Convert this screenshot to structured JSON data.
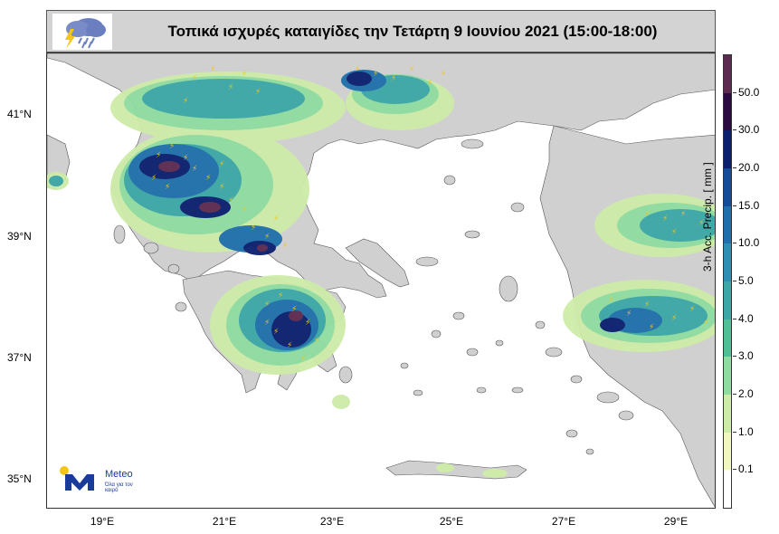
{
  "title": "Τοπικά ισχυρές καταιγίδες την Τετάρτη 9 Ιουνίου 2021 (15:00-18:00)",
  "icon": "thunderstorm-rain-icon",
  "map": {
    "land_color": "#d0d0d0",
    "sea_color": "#ffffff",
    "lightning_color": "#f5c518",
    "y_axis": [
      "41°N",
      "39°N",
      "37°N",
      "35°N"
    ],
    "x_axis": [
      "19°E",
      "21°E",
      "23°E",
      "25°E",
      "27°E",
      "29°E"
    ]
  },
  "colorbar": {
    "title": "3-h Acc. Precip. [ mm ]",
    "labels": [
      "50.0",
      "30.0",
      "20.0",
      "15.0",
      "10.0",
      "5.0",
      "4.0",
      "3.0",
      "2.0",
      "1.0",
      "0.1"
    ],
    "colors": [
      "#5c2a50",
      "#2a0a40",
      "#0a1f6e",
      "#154c9a",
      "#1e6fab",
      "#2e8fb5",
      "#3ba7a6",
      "#4fbf96",
      "#8fdca0",
      "#cdeca8",
      "#f2f7c0"
    ]
  },
  "logo": {
    "name": "Meteo",
    "tagline": "Όλα για τον καιρό"
  }
}
